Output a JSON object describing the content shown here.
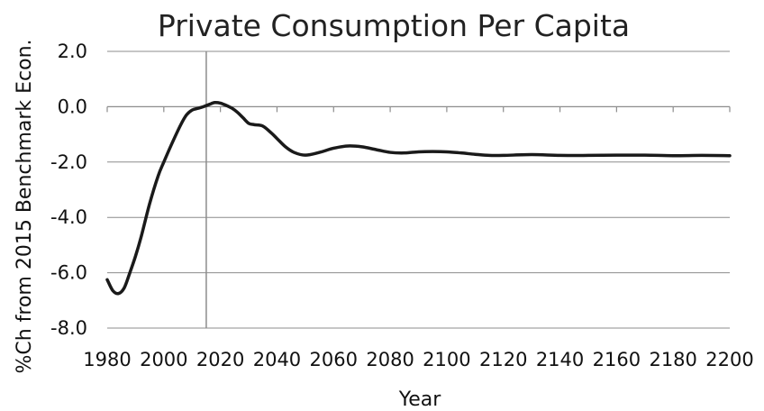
{
  "chart_data": {
    "type": "line",
    "title": "Private Consumption Per Capita",
    "xlabel": "Year",
    "ylabel": "%Ch from 2015 Benchmark Econ.",
    "xlim": [
      1980,
      2200
    ],
    "ylim": [
      -8.0,
      2.0
    ],
    "x_ticks": [
      "1980",
      "2000",
      "2020",
      "2040",
      "2060",
      "2080",
      "2100",
      "2120",
      "2140",
      "2160",
      "2180",
      "2200"
    ],
    "y_ticks": [
      "2.0",
      "0.0",
      "-2.0",
      "-4.0",
      "-6.0",
      "-8.0"
    ],
    "grid": "horizontal",
    "reference_line_x": 2015,
    "series": [
      {
        "color": "#1a1a1a",
        "x": [
          1980,
          1982,
          1984,
          1986,
          1988,
          1990,
          1992,
          1995,
          1998,
          2000,
          2003,
          2006,
          2008,
          2010,
          2012,
          2014,
          2016,
          2018,
          2020,
          2022,
          2024,
          2026,
          2028,
          2030,
          2032,
          2035,
          2038,
          2040,
          2043,
          2046,
          2050,
          2055,
          2060,
          2065,
          2070,
          2075,
          2080,
          2085,
          2090,
          2095,
          2100,
          2105,
          2110,
          2115,
          2120,
          2130,
          2140,
          2150,
          2160,
          2170,
          2180,
          2190,
          2200
        ],
        "values": [
          -6.25,
          -6.65,
          -6.75,
          -6.55,
          -6.0,
          -5.4,
          -4.7,
          -3.5,
          -2.5,
          -2.0,
          -1.3,
          -0.65,
          -0.3,
          -0.12,
          -0.06,
          0.0,
          0.08,
          0.15,
          0.13,
          0.05,
          -0.05,
          -0.2,
          -0.4,
          -0.6,
          -0.65,
          -0.7,
          -0.95,
          -1.15,
          -1.45,
          -1.65,
          -1.75,
          -1.65,
          -1.5,
          -1.42,
          -1.45,
          -1.55,
          -1.65,
          -1.67,
          -1.63,
          -1.62,
          -1.63,
          -1.67,
          -1.72,
          -1.76,
          -1.76,
          -1.73,
          -1.76,
          -1.76,
          -1.75,
          -1.75,
          -1.77,
          -1.76,
          -1.77
        ]
      }
    ]
  }
}
